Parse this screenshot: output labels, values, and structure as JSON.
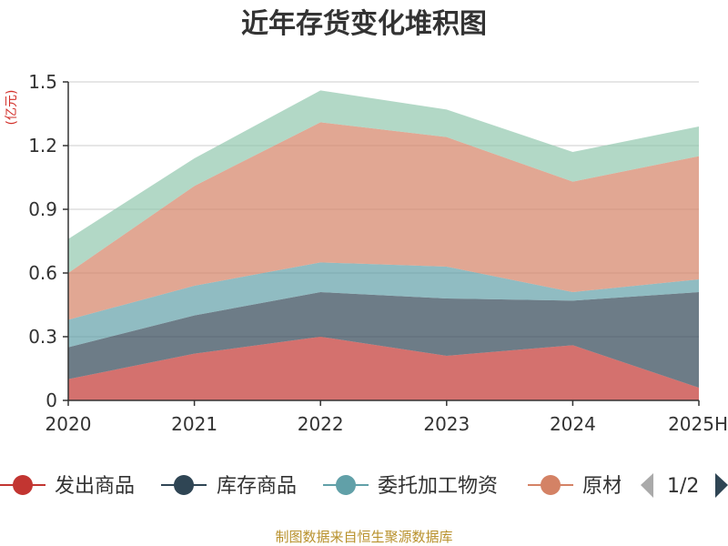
{
  "chart_data": {
    "type": "area",
    "title": "近年存货变化堆积图",
    "unit_label": "(亿元)",
    "stacked": true,
    "categories": [
      "2020",
      "2021",
      "2022",
      "2023",
      "2024",
      "2025H"
    ],
    "ylim": [
      0,
      1.5
    ],
    "yticks": [
      0,
      0.3,
      0.6,
      0.9,
      1.2,
      1.5
    ],
    "ytick_labels": [
      "0",
      "0.3",
      "0.6",
      "0.9",
      "1.2",
      "1.5"
    ],
    "grid": true,
    "legend_position": "bottom",
    "series": [
      {
        "name": "发出商品",
        "color": "#c23531",
        "values": [
          0.1,
          0.22,
          0.3,
          0.21,
          0.26,
          0.06
        ]
      },
      {
        "name": "库存商品",
        "color": "#2f4554",
        "values": [
          0.15,
          0.18,
          0.21,
          0.27,
          0.21,
          0.45
        ]
      },
      {
        "name": "委托加工物资",
        "color": "#61a0a8",
        "values": [
          0.13,
          0.14,
          0.14,
          0.15,
          0.04,
          0.06
        ]
      },
      {
        "name": "原材料",
        "color": "#d48265",
        "values": [
          0.22,
          0.47,
          0.66,
          0.61,
          0.52,
          0.58
        ]
      },
      {
        "name": "",
        "color": "#91c7ae",
        "values": [
          0.16,
          0.13,
          0.15,
          0.13,
          0.14,
          0.14
        ]
      }
    ]
  },
  "legend": {
    "visible_items": [
      "发出商品",
      "库存商品",
      "委托加工物资",
      "原材"
    ],
    "page_indicator": "1/2",
    "prev_icon": "triangle-left-icon",
    "next_icon": "triangle-right-icon"
  },
  "source_text": "制图数据来自恒生聚源数据库"
}
